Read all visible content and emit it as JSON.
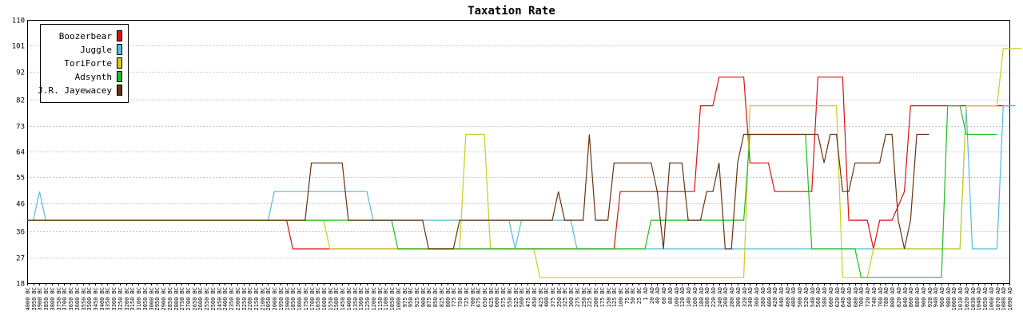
{
  "chart_data": {
    "type": "line",
    "title": "Taxation Rate",
    "xlabel": "",
    "ylabel": "",
    "ylim": [
      18,
      110
    ],
    "y_ticks": [
      18,
      27,
      36,
      46,
      55,
      64,
      73,
      82,
      92,
      101,
      110
    ],
    "grid": true,
    "legend_position": "top-left",
    "x": [
      "4000 BC",
      "3950 BC",
      "3900 BC",
      "3850 BC",
      "3800 BC",
      "3750 BC",
      "3700 BC",
      "3650 BC",
      "3600 BC",
      "3550 BC",
      "3500 BC",
      "3450 BC",
      "3400 BC",
      "3350 BC",
      "3300 BC",
      "3250 BC",
      "3200 BC",
      "3150 BC",
      "3100 BC",
      "3050 BC",
      "3000 BC",
      "2950 BC",
      "2900 BC",
      "2850 BC",
      "2800 BC",
      "2750 BC",
      "2700 BC",
      "2650 BC",
      "2600 BC",
      "2550 BC",
      "2500 BC",
      "2450 BC",
      "2400 BC",
      "2350 BC",
      "2300 BC",
      "2250 BC",
      "2200 BC",
      "2150 BC",
      "2100 BC",
      "2050 BC",
      "2000 BC",
      "1950 BC",
      "1900 BC",
      "1850 BC",
      "1800 BC",
      "1750 BC",
      "1700 BC",
      "1650 BC",
      "1600 BC",
      "1550 BC",
      "1500 BC",
      "1450 BC",
      "1400 BC",
      "1350 BC",
      "1300 BC",
      "1250 BC",
      "1200 BC",
      "1150 BC",
      "1100 BC",
      "1050 BC",
      "1000 BC",
      "975 BC",
      "950 BC",
      "925 BC",
      "900 BC",
      "875 BC",
      "850 BC",
      "825 BC",
      "800 BC",
      "775 BC",
      "750 BC",
      "725 BC",
      "700 BC",
      "675 BC",
      "650 BC",
      "625 BC",
      "600 BC",
      "575 BC",
      "550 BC",
      "525 BC",
      "500 BC",
      "475 BC",
      "450 BC",
      "425 BC",
      "400 BC",
      "375 BC",
      "350 BC",
      "325 BC",
      "300 BC",
      "275 BC",
      "250 BC",
      "225 BC",
      "200 BC",
      "175 BC",
      "150 BC",
      "125 BC",
      "100 BC",
      "75 BC",
      "50 BC",
      "25 BC",
      "1 AD",
      "20 AD",
      "40 AD",
      "60 AD",
      "80 AD",
      "100 AD",
      "120 AD",
      "140 AD",
      "160 AD",
      "180 AD",
      "200 AD",
      "220 AD",
      "240 AD",
      "260 AD",
      "280 AD",
      "300 AD",
      "320 AD",
      "340 AD",
      "360 AD",
      "380 AD",
      "400 AD",
      "420 AD",
      "440 AD",
      "460 AD",
      "480 AD",
      "500 AD",
      "520 AD",
      "540 AD",
      "560 AD",
      "580 AD",
      "600 AD",
      "620 AD",
      "640 AD",
      "660 AD",
      "680 AD",
      "700 AD",
      "720 AD",
      "740 AD",
      "760 AD",
      "780 AD",
      "800 AD",
      "820 AD",
      "840 AD",
      "860 AD",
      "880 AD",
      "900 AD",
      "920 AD",
      "940 AD",
      "960 AD",
      "980 AD",
      "1000 AD",
      "1010 AD",
      "1020 AD",
      "1030 AD",
      "1040 AD",
      "1050 AD",
      "1060 AD",
      "1070 AD",
      "1080 AD",
      "1090 AD"
    ],
    "series": [
      {
        "name": "Boozerbear",
        "color": "#dd1111",
        "segments": [
          [
            0,
            40
          ],
          [
            42,
            40
          ],
          [
            43,
            30
          ],
          [
            50,
            30
          ],
          [
            51,
            30
          ],
          [
            95,
            30
          ],
          [
            96,
            50
          ],
          [
            108,
            50
          ],
          [
            109,
            80
          ],
          [
            111,
            80
          ],
          [
            112,
            90
          ],
          [
            116,
            90
          ],
          [
            117,
            60
          ],
          [
            120,
            60
          ],
          [
            121,
            50
          ],
          [
            127,
            50
          ],
          [
            128,
            90
          ],
          [
            132,
            90
          ],
          [
            133,
            40
          ],
          [
            136,
            40
          ],
          [
            137,
            30
          ],
          [
            138,
            40
          ],
          [
            140,
            40
          ],
          [
            142,
            50
          ],
          [
            143,
            80
          ],
          [
            159,
            80
          ]
        ]
      },
      {
        "name": "Juggle",
        "color": "#55bbdd",
        "segments": [
          [
            0,
            40
          ],
          [
            1,
            40
          ],
          [
            2,
            50
          ],
          [
            3,
            40
          ],
          [
            39,
            40
          ],
          [
            40,
            50
          ],
          [
            55,
            50
          ],
          [
            56,
            40
          ],
          [
            78,
            40
          ],
          [
            79,
            30
          ],
          [
            80,
            40
          ],
          [
            88,
            40
          ],
          [
            89,
            30
          ],
          [
            151,
            30
          ],
          [
            152,
            80
          ],
          [
            153,
            30
          ],
          [
            157,
            30
          ],
          [
            158,
            80
          ],
          [
            160,
            80
          ]
        ]
      },
      {
        "name": "ToriForte",
        "color": "#cccc22",
        "segments": [
          [
            0,
            40
          ],
          [
            48,
            40
          ],
          [
            49,
            30
          ],
          [
            70,
            30
          ],
          [
            71,
            70
          ],
          [
            74,
            70
          ],
          [
            75,
            30
          ],
          [
            82,
            30
          ],
          [
            83,
            20
          ],
          [
            116,
            20
          ],
          [
            117,
            80
          ],
          [
            131,
            80
          ],
          [
            132,
            20
          ],
          [
            136,
            20
          ],
          [
            137,
            30
          ],
          [
            151,
            30
          ],
          [
            152,
            80
          ],
          [
            157,
            80
          ],
          [
            158,
            100
          ],
          [
            161,
            100
          ]
        ]
      },
      {
        "name": "Adsynth",
        "color": "#22bb22",
        "segments": [
          [
            0,
            40
          ],
          [
            59,
            40
          ],
          [
            60,
            30
          ],
          [
            100,
            30
          ],
          [
            101,
            40
          ],
          [
            116,
            40
          ],
          [
            117,
            70
          ],
          [
            126,
            70
          ],
          [
            127,
            30
          ],
          [
            134,
            30
          ],
          [
            135,
            20
          ],
          [
            148,
            20
          ],
          [
            149,
            80
          ],
          [
            151,
            80
          ],
          [
            152,
            70
          ],
          [
            157,
            70
          ]
        ]
      },
      {
        "name": "J.R. Jayewacey",
        "color": "#663311",
        "segments": [
          [
            0,
            40
          ],
          [
            45,
            40
          ],
          [
            46,
            60
          ],
          [
            51,
            60
          ],
          [
            52,
            40
          ],
          [
            64,
            40
          ],
          [
            65,
            30
          ],
          [
            69,
            30
          ],
          [
            70,
            40
          ],
          [
            85,
            40
          ],
          [
            86,
            50
          ],
          [
            87,
            40
          ],
          [
            90,
            40
          ],
          [
            91,
            70
          ],
          [
            92,
            40
          ],
          [
            94,
            40
          ],
          [
            95,
            60
          ],
          [
            101,
            60
          ],
          [
            102,
            50
          ],
          [
            103,
            30
          ],
          [
            104,
            60
          ],
          [
            106,
            60
          ],
          [
            107,
            40
          ],
          [
            109,
            40
          ],
          [
            110,
            50
          ],
          [
            111,
            50
          ],
          [
            112,
            60
          ],
          [
            113,
            30
          ],
          [
            114,
            30
          ],
          [
            115,
            60
          ],
          [
            116,
            70
          ],
          [
            128,
            70
          ],
          [
            129,
            60
          ],
          [
            130,
            70
          ],
          [
            131,
            70
          ],
          [
            132,
            50
          ],
          [
            133,
            50
          ],
          [
            134,
            60
          ],
          [
            138,
            60
          ],
          [
            139,
            70
          ],
          [
            140,
            70
          ],
          [
            141,
            40
          ],
          [
            142,
            30
          ],
          [
            143,
            40
          ],
          [
            144,
            70
          ],
          [
            146,
            70
          ]
        ]
      }
    ]
  }
}
